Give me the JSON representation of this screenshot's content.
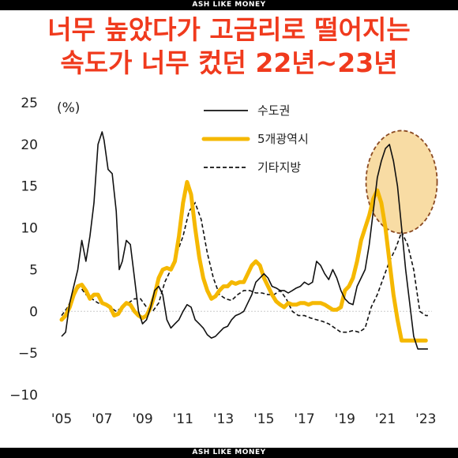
{
  "brand_top": "ASH LIKE MONEY",
  "brand_bottom": "ASH LIKE MONEY",
  "headline": {
    "line1": "너무 높았다가 고금리로 떨어지는",
    "line2": "속도가 너무 컸던 22년~23년"
  },
  "colors": {
    "capital": "#111111",
    "metro": "#f5b800",
    "other": "#111111",
    "highlight_fill": "#f8dca4",
    "highlight_stroke": "#8b4a22",
    "headline": "#f03a1d"
  },
  "chart_data": {
    "type": "line",
    "title": "",
    "ylabel": "(%)",
    "xlabel": "",
    "ylim": [
      -10,
      25
    ],
    "xlim": [
      2005,
      2023.3
    ],
    "y_ticks": [
      "25",
      "20",
      "15",
      "10",
      "5",
      "0",
      "−5",
      "−10"
    ],
    "y_tick_values": [
      25,
      20,
      15,
      10,
      5,
      0,
      -5,
      -10
    ],
    "x_ticks": [
      "'05",
      "'07",
      "'09",
      "'11",
      "'13",
      "'15",
      "'17",
      "'19",
      "'21",
      "'23"
    ],
    "x_tick_values": [
      2005,
      2007,
      2009,
      2011,
      2013,
      2015,
      2017,
      2019,
      2021,
      2023
    ],
    "legend": [
      "수도권",
      "5개광역시",
      "기타지방"
    ],
    "highlight": {
      "shape": "ellipse",
      "cx": 2021.8,
      "cy": 15.5
    },
    "series": [
      {
        "name": "수도권",
        "style": "thin-solid",
        "x": [
          2005.0,
          2005.2,
          2005.4,
          2005.6,
          2005.8,
          2006.0,
          2006.2,
          2006.4,
          2006.6,
          2006.8,
          2007.0,
          2007.1,
          2007.3,
          2007.5,
          2007.7,
          2007.85,
          2008.0,
          2008.2,
          2008.4,
          2008.6,
          2008.8,
          2009.0,
          2009.2,
          2009.4,
          2009.6,
          2009.8,
          2010.0,
          2010.2,
          2010.4,
          2010.6,
          2010.8,
          2011.0,
          2011.2,
          2011.4,
          2011.6,
          2011.8,
          2012.0,
          2012.2,
          2012.4,
          2012.6,
          2012.8,
          2013.0,
          2013.2,
          2013.4,
          2013.6,
          2013.8,
          2014.0,
          2014.2,
          2014.4,
          2014.6,
          2014.8,
          2015.0,
          2015.2,
          2015.4,
          2015.6,
          2015.8,
          2016.0,
          2016.2,
          2016.4,
          2016.6,
          2016.8,
          2017.0,
          2017.2,
          2017.4,
          2017.6,
          2017.8,
          2018.0,
          2018.2,
          2018.4,
          2018.6,
          2018.8,
          2019.0,
          2019.2,
          2019.4,
          2019.6,
          2019.8,
          2020.0,
          2020.2,
          2020.4,
          2020.6,
          2020.8,
          2021.0,
          2021.2,
          2021.4,
          2021.6,
          2021.8,
          2022.0,
          2022.2,
          2022.4,
          2022.6,
          2022.8,
          2023.0,
          2023.1
        ],
        "values": [
          -3.0,
          -2.5,
          1.0,
          3.0,
          5.0,
          8.5,
          6.0,
          9.0,
          13.0,
          20.0,
          21.5,
          20.5,
          17.0,
          16.5,
          12.0,
          5.0,
          6.0,
          8.5,
          8.0,
          4.0,
          0.0,
          -1.5,
          -1.0,
          0.5,
          2.5,
          3.0,
          2.0,
          -1.0,
          -2.0,
          -1.5,
          -1.0,
          0.0,
          0.8,
          0.5,
          -1.0,
          -1.5,
          -2.0,
          -2.8,
          -3.2,
          -3.0,
          -2.5,
          -2.0,
          -1.8,
          -1.0,
          -0.5,
          -0.3,
          0.0,
          1.0,
          2.0,
          3.5,
          4.0,
          4.5,
          4.0,
          3.0,
          2.8,
          2.5,
          2.5,
          2.2,
          2.5,
          2.8,
          3.0,
          3.5,
          3.2,
          3.5,
          6.0,
          5.5,
          4.5,
          3.8,
          5.0,
          4.0,
          2.5,
          1.5,
          1.0,
          0.8,
          3.0,
          4.0,
          5.0,
          8.0,
          12.0,
          16.0,
          18.0,
          19.5,
          20.0,
          18.0,
          15.0,
          10.0,
          5.0,
          1.0,
          -3.0,
          -4.5,
          -4.5,
          -4.5,
          -4.5
        ]
      },
      {
        "name": "5개광역시",
        "style": "thick-solid",
        "x": [
          2005.0,
          2005.2,
          2005.4,
          2005.6,
          2005.8,
          2006.0,
          2006.2,
          2006.4,
          2006.6,
          2006.8,
          2007.0,
          2007.2,
          2007.4,
          2007.6,
          2007.8,
          2008.0,
          2008.2,
          2008.4,
          2008.6,
          2008.8,
          2009.0,
          2009.2,
          2009.4,
          2009.6,
          2009.8,
          2010.0,
          2010.2,
          2010.4,
          2010.6,
          2010.8,
          2011.0,
          2011.2,
          2011.4,
          2011.6,
          2011.8,
          2012.0,
          2012.2,
          2012.4,
          2012.6,
          2012.8,
          2013.0,
          2013.2,
          2013.4,
          2013.6,
          2013.8,
          2014.0,
          2014.2,
          2014.4,
          2014.6,
          2014.8,
          2015.0,
          2015.2,
          2015.4,
          2015.6,
          2015.8,
          2016.0,
          2016.2,
          2016.4,
          2016.6,
          2016.8,
          2017.0,
          2017.2,
          2017.4,
          2017.6,
          2017.8,
          2018.0,
          2018.2,
          2018.4,
          2018.6,
          2018.8,
          2019.0,
          2019.2,
          2019.4,
          2019.6,
          2019.8,
          2020.0,
          2020.2,
          2020.4,
          2020.6,
          2020.8,
          2021.0,
          2021.2,
          2021.4,
          2021.6,
          2021.8,
          2022.0,
          2022.2,
          2022.4,
          2022.6,
          2022.8,
          2023.0
        ],
        "values": [
          -1.0,
          -0.5,
          0.5,
          2.0,
          3.0,
          3.2,
          2.5,
          1.5,
          2.0,
          2.0,
          1.0,
          0.8,
          0.5,
          -0.5,
          -0.3,
          0.5,
          1.0,
          0.8,
          0.0,
          -0.5,
          -0.8,
          -0.5,
          0.5,
          2.0,
          4.0,
          5.0,
          5.2,
          5.0,
          6.0,
          9.0,
          13.0,
          15.5,
          14.0,
          10.0,
          6.5,
          4.0,
          2.5,
          1.5,
          1.8,
          2.5,
          3.0,
          3.0,
          3.5,
          3.3,
          3.5,
          3.5,
          4.5,
          5.5,
          6.0,
          5.5,
          4.0,
          3.0,
          2.0,
          1.2,
          0.8,
          0.5,
          1.0,
          0.8,
          0.8,
          1.0,
          1.0,
          0.8,
          1.0,
          1.0,
          1.0,
          0.8,
          0.5,
          0.2,
          0.2,
          0.5,
          2.5,
          3.0,
          4.0,
          6.0,
          8.5,
          10.0,
          11.5,
          13.5,
          14.5,
          13.0,
          10.0,
          6.0,
          2.0,
          -1.0,
          -3.5,
          -3.5,
          -3.5,
          -3.5,
          -3.5,
          -3.5,
          -3.5
        ]
      },
      {
        "name": "기타지방",
        "style": "dashed",
        "x": [
          2005.0,
          2005.3,
          2005.6,
          2005.9,
          2006.2,
          2006.5,
          2006.8,
          2007.1,
          2007.4,
          2007.7,
          2008.0,
          2008.3,
          2008.6,
          2008.9,
          2009.2,
          2009.5,
          2009.8,
          2010.1,
          2010.4,
          2010.7,
          2011.0,
          2011.3,
          2011.6,
          2011.9,
          2012.2,
          2012.5,
          2012.8,
          2013.1,
          2013.4,
          2013.7,
          2014.0,
          2014.3,
          2014.6,
          2014.9,
          2015.2,
          2015.5,
          2015.8,
          2016.1,
          2016.4,
          2016.7,
          2017.0,
          2017.3,
          2017.6,
          2017.9,
          2018.2,
          2018.5,
          2018.8,
          2019.1,
          2019.4,
          2019.7,
          2020.0,
          2020.3,
          2020.6,
          2020.9,
          2021.2,
          2021.5,
          2021.8,
          2022.1,
          2022.4,
          2022.7,
          2023.0,
          2023.1
        ],
        "values": [
          -0.5,
          0.5,
          2.0,
          3.0,
          2.0,
          1.5,
          1.0,
          0.8,
          0.5,
          0.0,
          0.5,
          1.0,
          1.5,
          1.5,
          0.5,
          0.0,
          1.0,
          3.5,
          5.0,
          7.0,
          9.0,
          12.0,
          13.0,
          11.0,
          7.0,
          4.0,
          2.0,
          1.5,
          1.3,
          2.0,
          2.5,
          2.5,
          2.2,
          2.2,
          2.0,
          2.0,
          2.5,
          1.5,
          0.0,
          -0.5,
          -0.5,
          -0.8,
          -1.0,
          -1.2,
          -1.5,
          -2.0,
          -2.5,
          -2.5,
          -2.3,
          -2.5,
          -2.0,
          0.5,
          2.0,
          4.0,
          6.0,
          7.5,
          9.5,
          8.0,
          5.0,
          0.0,
          -0.5,
          -0.5
        ]
      }
    ]
  }
}
